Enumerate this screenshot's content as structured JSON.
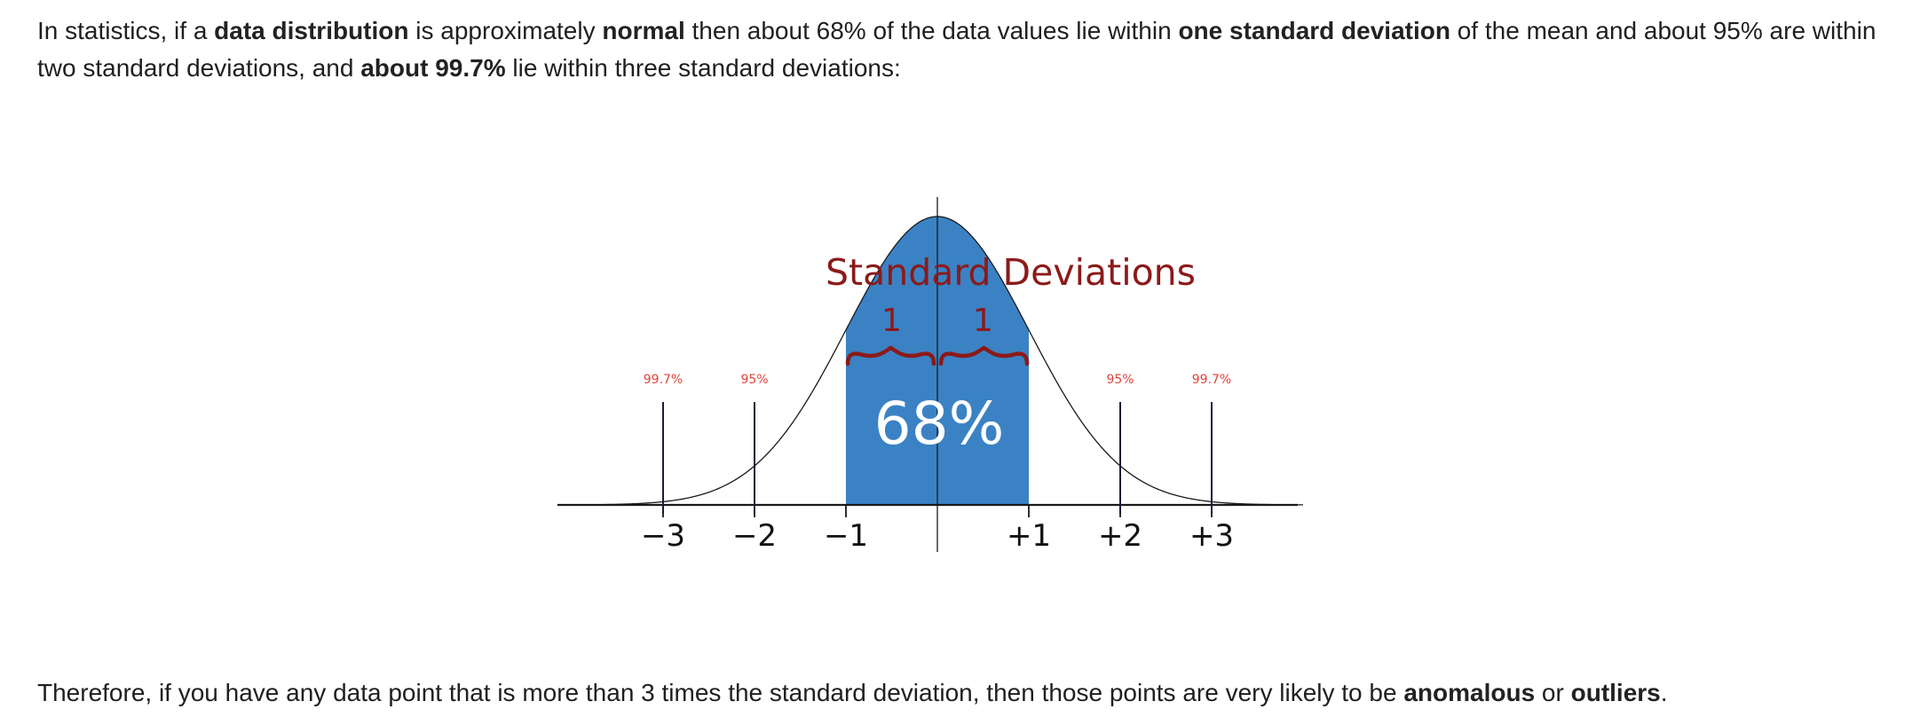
{
  "intro": {
    "t1": "In statistics, if a ",
    "b1": "data distribution",
    "t2": " is approximately ",
    "b2": "normal",
    "t3": " then about 68% of the data values lie within ",
    "b3": "one standard deviation",
    "t4": " of the mean and about 95% are within two standard deviations, and ",
    "b4": "about 99.7%",
    "t5": " lie within three standard deviations:"
  },
  "figure": {
    "title": "Standard Deviations",
    "brace_left_label": "1",
    "brace_right_label": "1",
    "center_percent": "68%",
    "marker_labels": {
      "m3_left": "99.7%",
      "m2_left": "95%",
      "m2_right": "95%",
      "m3_right": "99.7%"
    },
    "tick_labels": [
      "−3",
      "−2",
      "−1",
      "+1",
      "+2",
      "+3"
    ],
    "colors": {
      "fill": "#3b82c4",
      "title": "#8b1a1a",
      "marker_label": "#e0443a",
      "curve": "#1a1a1a",
      "marker_line": "#1a1a3a"
    }
  },
  "conclusion": {
    "t1": "Therefore, if you have any data point that is more than 3 times the standard deviation, then those points are very likely to be ",
    "b1": "anomalous",
    "t2": " or ",
    "b2": "outliers",
    "t3": "."
  }
}
